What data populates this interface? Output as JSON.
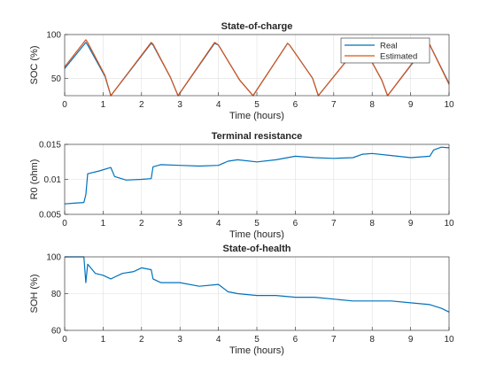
{
  "chart_data": [
    {
      "type": "line",
      "title": "State-of-charge",
      "xlabel": "Time (hours)",
      "ylabel": "SOC (%)",
      "xlim": [
        0,
        10
      ],
      "ylim": [
        30,
        100
      ],
      "xticks": [
        0,
        1,
        2,
        3,
        4,
        5,
        6,
        7,
        8,
        9,
        10
      ],
      "yticks": [
        50,
        100
      ],
      "grid": true,
      "legend": "top-right",
      "series": [
        {
          "name": "Real",
          "color": "#0072BD",
          "x": [
            0,
            0.55,
            0.6,
            1.05,
            1.2,
            2.25,
            2.3,
            2.75,
            2.95,
            3.9,
            4.0,
            4.55,
            4.9,
            5.8,
            5.85,
            6.45,
            6.6,
            7.7,
            7.75,
            8.25,
            8.4,
            9.45,
            9.5,
            10.0
          ],
          "y": [
            61,
            91,
            88,
            52,
            30,
            90,
            88,
            51,
            30,
            90,
            88,
            48,
            30,
            90,
            88,
            50,
            30,
            90,
            88,
            48,
            30,
            90,
            88,
            44
          ]
        },
        {
          "name": "Estimated",
          "color": "#D95319",
          "x": [
            0,
            0.55,
            0.6,
            1.05,
            1.2,
            2.25,
            2.3,
            2.75,
            2.95,
            3.9,
            4.0,
            4.55,
            4.9,
            5.8,
            5.85,
            6.45,
            6.6,
            7.7,
            7.75,
            8.25,
            8.4,
            9.45,
            9.5,
            10.0
          ],
          "y": [
            63,
            94,
            91,
            53,
            30,
            91,
            89,
            51,
            30,
            91,
            88,
            48,
            30,
            90,
            88,
            50,
            30,
            90,
            88,
            48,
            30,
            91,
            88,
            43
          ]
        }
      ]
    },
    {
      "type": "line",
      "title": "Terminal resistance",
      "xlabel": "Time (hours)",
      "ylabel": "R0 (ohm)",
      "xlim": [
        0,
        10
      ],
      "ylim": [
        0.005,
        0.015
      ],
      "xticks": [
        0,
        1,
        2,
        3,
        4,
        5,
        6,
        7,
        8,
        9,
        10
      ],
      "yticks": [
        0.005,
        0.01,
        0.015
      ],
      "ytick_labels": [
        "0.005",
        "0.01",
        "0.015"
      ],
      "grid": true,
      "series": [
        {
          "name": "",
          "color": "#0072BD",
          "x": [
            0,
            0.25,
            0.5,
            0.55,
            0.6,
            0.9,
            1.2,
            1.3,
            1.6,
            2.0,
            2.25,
            2.3,
            2.5,
            3.0,
            3.5,
            4.0,
            4.25,
            4.5,
            5.0,
            5.5,
            6.0,
            6.5,
            7.0,
            7.5,
            7.75,
            8.0,
            8.5,
            9.0,
            9.5,
            9.6,
            9.8,
            10.0
          ],
          "y": [
            0.0065,
            0.0066,
            0.0067,
            0.0078,
            0.0108,
            0.0112,
            0.0117,
            0.0104,
            0.0099,
            0.01,
            0.0101,
            0.0118,
            0.0121,
            0.012,
            0.0119,
            0.012,
            0.0126,
            0.0128,
            0.0125,
            0.0128,
            0.0133,
            0.0131,
            0.013,
            0.0131,
            0.0136,
            0.0137,
            0.0134,
            0.0131,
            0.0133,
            0.0142,
            0.0146,
            0.0145
          ]
        }
      ]
    },
    {
      "type": "line",
      "title": "State-of-health",
      "xlabel": "Time (hours)",
      "ylabel": "SOH (%)",
      "xlim": [
        0,
        10
      ],
      "ylim": [
        60,
        100
      ],
      "xticks": [
        0,
        1,
        2,
        3,
        4,
        5,
        6,
        7,
        8,
        9,
        10
      ],
      "yticks": [
        60,
        80,
        100
      ],
      "grid": true,
      "series": [
        {
          "name": "",
          "color": "#0072BD",
          "x": [
            0,
            0.5,
            0.55,
            0.6,
            0.8,
            1.0,
            1.2,
            1.5,
            1.8,
            2.0,
            2.25,
            2.3,
            2.5,
            3.0,
            3.5,
            4.0,
            4.25,
            4.5,
            5.0,
            5.5,
            6.0,
            6.5,
            7.0,
            7.5,
            8.0,
            8.5,
            9.0,
            9.5,
            9.8,
            10.0
          ],
          "y": [
            100,
            100,
            86,
            96,
            91,
            90,
            88,
            91,
            92,
            94,
            93,
            88,
            86,
            86,
            84,
            85,
            81,
            80,
            79,
            79,
            78,
            78,
            77,
            76,
            76,
            76,
            75,
            74,
            72,
            70
          ]
        }
      ]
    }
  ]
}
